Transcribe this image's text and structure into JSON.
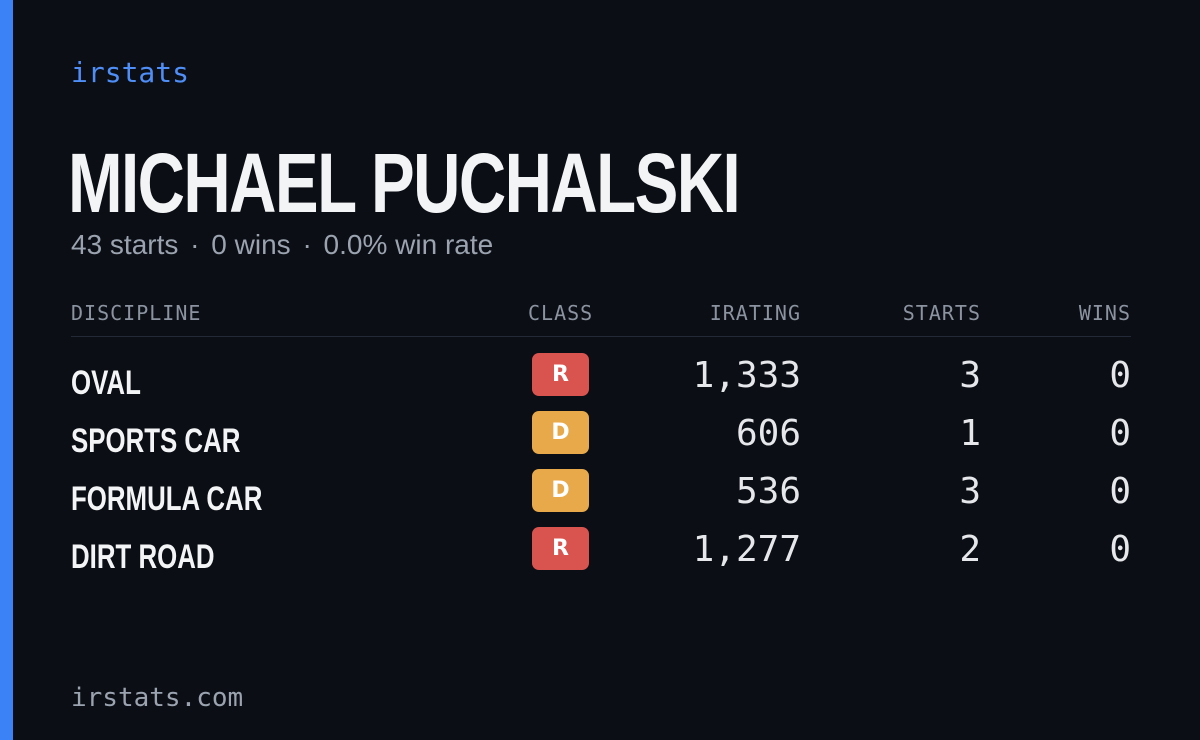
{
  "brand": "irstats",
  "driver": {
    "name": "MICHAEL PUCHALSKI",
    "starts_text": "43 starts",
    "wins_text": "0 wins",
    "win_rate_text": "0.0% win rate",
    "separator": "·"
  },
  "table": {
    "headers": {
      "discipline": "DISCIPLINE",
      "class": "CLASS",
      "irating": "IRATING",
      "starts": "STARTS",
      "wins": "WINS"
    },
    "rows": [
      {
        "discipline": "OVAL",
        "class": "R",
        "class_color": "#d9534f",
        "irating": "1,333",
        "starts": "3",
        "wins": "0"
      },
      {
        "discipline": "SPORTS CAR",
        "class": "D",
        "class_color": "#e8a94a",
        "irating": "606",
        "starts": "1",
        "wins": "0"
      },
      {
        "discipline": "FORMULA CAR",
        "class": "D",
        "class_color": "#e8a94a",
        "irating": "536",
        "starts": "3",
        "wins": "0"
      },
      {
        "discipline": "DIRT ROAD",
        "class": "R",
        "class_color": "#d9534f",
        "irating": "1,277",
        "starts": "2",
        "wins": "0"
      }
    ]
  },
  "footer": "irstats.com",
  "colors": {
    "accent": "#3b82f6",
    "background": "#0b0e14"
  }
}
